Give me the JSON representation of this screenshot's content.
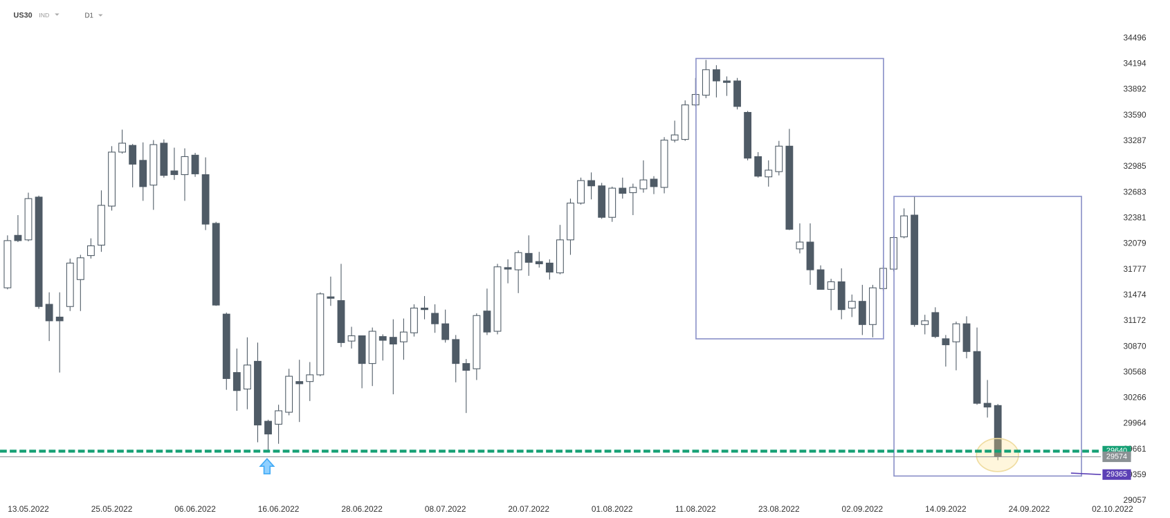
{
  "header": {
    "symbol": "US30",
    "market": "IND",
    "interval": "D1"
  },
  "chart_data": {
    "type": "candlestick",
    "categories": [
      null,
      null,
      "13.05.2022",
      null,
      null,
      null,
      null,
      null,
      null,
      null,
      "25.05.2022",
      null,
      null,
      null,
      null,
      null,
      null,
      null,
      "06.06.2022",
      null,
      null,
      null,
      null,
      null,
      null,
      null,
      "16.06.2022",
      null,
      null,
      null,
      null,
      null,
      null,
      null,
      "28.06.2022",
      null,
      null,
      null,
      null,
      null,
      null,
      null,
      "08.07.2022",
      null,
      null,
      null,
      null,
      null,
      null,
      null,
      "20.07.2022",
      null,
      null,
      null,
      null,
      null,
      null,
      null,
      "01.08.2022",
      null,
      null,
      null,
      null,
      null,
      null,
      null,
      "11.08.2022",
      null,
      null,
      null,
      null,
      null,
      null,
      null,
      "23.08.2022",
      null,
      null,
      null,
      null,
      null,
      null,
      null,
      "02.09.2022",
      null,
      null,
      null,
      null,
      null,
      null,
      null,
      "14.09.2022",
      null,
      null,
      null,
      null,
      null,
      null,
      null,
      "24.09.2022",
      null,
      null,
      null,
      null,
      null,
      null,
      null,
      "02.10.2022"
    ],
    "open": [
      31561,
      32178,
      32125,
      32628,
      31367,
      31217,
      31341,
      31658,
      31940,
      32063,
      32522,
      33157,
      33236,
      33060,
      32769,
      33262,
      32936,
      32892,
      33121,
      32892,
      32319,
      31252,
      30565,
      30371,
      30697,
      29992,
      29957,
      30098,
      30459,
      30459,
      30538,
      31455,
      31411,
      30935,
      30997,
      30671,
      30988,
      30979,
      30926,
      31032,
      31323,
      31261,
      31138,
      30953,
      30671,
      30609,
      31288,
      31050,
      31799,
      31773,
      31966,
      31870,
      31852,
      31737,
      32125,
      32557,
      32822,
      32760,
      32390,
      32733,
      32680,
      32725,
      32839,
      32742,
      33298,
      33306,
      33712,
      33826,
      34126,
      33994,
      33994,
      33624,
      33104,
      32866,
      32927,
      33227,
      32019,
      32099,
      31773,
      31543,
      31632,
      31323,
      31402,
      31129,
      31552,
      31781,
      32160,
      32416,
      31129,
      31270,
      30962,
      30926,
      31138,
      30812,
      30203,
      30177,
      null,
      null,
      null,
      null,
      null,
      null,
      null,
      null,
      null,
      null,
      null
    ],
    "high": [
      32178,
      32416,
      32680,
      32645,
      31508,
      31508,
      31905,
      31949,
      32143,
      32707,
      33227,
      33421,
      33253,
      33271,
      33298,
      33306,
      33209,
      33201,
      33148,
      33095,
      32337,
      31270,
      30847,
      30979,
      30917,
      30010,
      30186,
      30609,
      30715,
      30688,
      31508,
      31693,
      31843,
      31103,
      30997,
      31094,
      31014,
      31191,
      31200,
      31367,
      31464,
      31367,
      31305,
      31006,
      30724,
      31261,
      31552,
      31843,
      31896,
      32002,
      32178,
      31984,
      31896,
      32301,
      32610,
      32857,
      32918,
      32795,
      32751,
      32857,
      32786,
      33060,
      32874,
      33333,
      33527,
      33765,
      34029,
      34241,
      34179,
      34047,
      34029,
      33641,
      33157,
      33060,
      33289,
      33430,
      32319,
      32319,
      31825,
      31667,
      31790,
      31482,
      31596,
      31596,
      31825,
      32169,
      32495,
      32636,
      31244,
      31332,
      31006,
      31164,
      31226,
      31094,
      30477,
      30195,
      null,
      null,
      null,
      null,
      null,
      null,
      null,
      null,
      null,
      null,
      null
    ],
    "low": [
      31543,
      32099,
      32108,
      31314,
      30935,
      30565,
      31288,
      31288,
      31905,
      31984,
      32469,
      33139,
      32742,
      32584,
      32478,
      32857,
      32830,
      32584,
      32866,
      32240,
      31349,
      30362,
      30115,
      30133,
      29745,
      29648,
      29727,
      30062,
      29983,
      30230,
      30521,
      31349,
      30865,
      30847,
      30380,
      30406,
      30706,
      30309,
      30715,
      30988,
      31191,
      31032,
      30917,
      30450,
      30089,
      30477,
      31006,
      31014,
      31614,
      31499,
      31702,
      31799,
      31658,
      31720,
      31949,
      32540,
      32601,
      32372,
      32337,
      32610,
      32416,
      32680,
      32663,
      32672,
      33271,
      33289,
      33694,
      33791,
      33800,
      33818,
      33659,
      33060,
      32857,
      32751,
      32883,
      32240,
      31966,
      31596,
      31543,
      31297,
      31191,
      31217,
      31006,
      30979,
      31526,
      31755,
      32143,
      31103,
      31014,
      30970,
      30635,
      30591,
      30732,
      30186,
      30036,
      29534,
      null,
      null,
      null,
      null,
      null,
      null,
      null,
      null,
      null,
      null,
      null
    ],
    "close": [
      32116,
      32116,
      32610,
      31341,
      31173,
      31173,
      31852,
      31914,
      32055,
      32531,
      33157,
      33262,
      33015,
      32751,
      33245,
      32883,
      32892,
      33104,
      32901,
      32310,
      31358,
      30494,
      30353,
      30653,
      29948,
      29842,
      30115,
      30521,
      30433,
      30538,
      31490,
      31438,
      30917,
      30997,
      30671,
      31050,
      30944,
      30900,
      31041,
      31323,
      31305,
      31138,
      30953,
      30671,
      30591,
      31235,
      31041,
      31808,
      31781,
      31975,
      31861,
      31843,
      31746,
      32125,
      32557,
      32822,
      32760,
      32390,
      32733,
      32672,
      32742,
      32830,
      32751,
      33298,
      33359,
      33712,
      33835,
      34126,
      33994,
      33976,
      33694,
      33086,
      32874,
      32945,
      33227,
      32249,
      32099,
      31773,
      31543,
      31632,
      31305,
      31402,
      31129,
      31561,
      31790,
      32152,
      32407,
      31129,
      31173,
      30988,
      30891,
      31138,
      30812,
      30203,
      30159,
      29574,
      null,
      null,
      null,
      null,
      null,
      null,
      null,
      null,
      null,
      null,
      null
    ],
    "up_color": "#ffffff",
    "down_color": "#4f5b66",
    "ylim": [
      29057,
      34496
    ],
    "yticks": [
      29057,
      29359,
      29661,
      29964,
      30266,
      30568,
      30870,
      31172,
      31474,
      31777,
      32079,
      32381,
      32683,
      32985,
      33287,
      33590,
      33892,
      34194,
      34496
    ],
    "levels": [
      {
        "value": 29640,
        "color": "#16a075",
        "style": "dashed"
      },
      {
        "value": 29574,
        "color": "#8a9194",
        "style": "solid"
      },
      {
        "value": 29365,
        "color": "#5b3fb5",
        "style": "short"
      }
    ]
  }
}
